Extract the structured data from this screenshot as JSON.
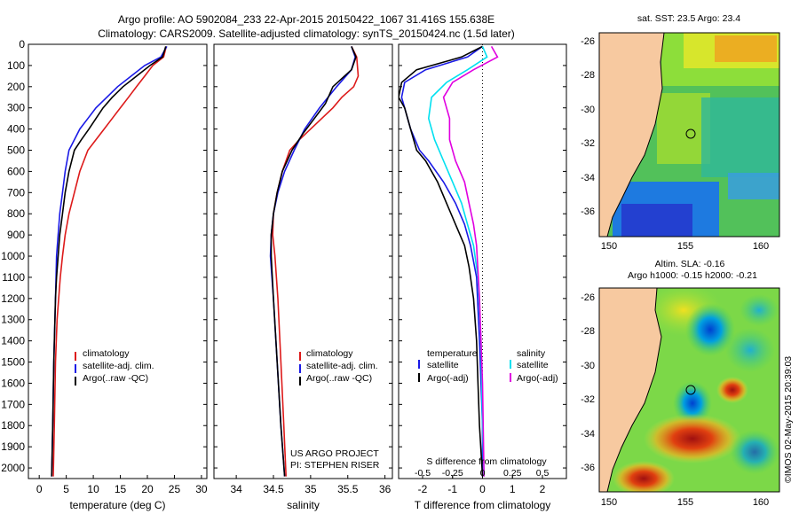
{
  "title_line1": "Argo profile: AO 5902084_233 22-Apr-2015 20150422_1067 31.416S 155.638E",
  "title_line2": "Climatology: CARS2009. Satellite-adjusted climatology: synTS_20150424.nc (1.5d later)",
  "colors": {
    "climatology": "#dd1a1a",
    "satellite": "#1a1ae6",
    "argo": "#000000",
    "sat_salinity": "#00e0f0",
    "argo_salinity": "#e000e0",
    "land": "#f7c9a0"
  },
  "chart_data": [
    {
      "type": "line",
      "xlabel": "temperature (deg C)",
      "xlim": [
        -2,
        31
      ],
      "xticks": [
        0,
        5,
        10,
        15,
        20,
        25,
        30
      ],
      "ylim": [
        2050,
        0
      ],
      "yticks": [
        0,
        100,
        200,
        300,
        400,
        500,
        600,
        700,
        800,
        900,
        1000,
        1100,
        1200,
        1300,
        1400,
        1500,
        1600,
        1700,
        1800,
        1900,
        2000
      ],
      "legend": [
        "climatology",
        "satellite-adj. clim.",
        "Argo(..raw -QC)"
      ],
      "series": [
        {
          "name": "climatology",
          "color": "#dd1a1a",
          "x": [
            23.5,
            23.0,
            21.0,
            19.5,
            18.0,
            16.5,
            15.0,
            13.5,
            12.0,
            10.5,
            9.0,
            7.5,
            6.5,
            5.5,
            4.8,
            4.3,
            3.9,
            3.6,
            3.3,
            3.0,
            2.8,
            2.6
          ],
          "depth": [
            10,
            60,
            100,
            150,
            200,
            250,
            300,
            350,
            400,
            450,
            500,
            600,
            700,
            800,
            900,
            1000,
            1100,
            1200,
            1300,
            1500,
            1800,
            2040
          ]
        },
        {
          "name": "satellite-adj. clim.",
          "color": "#1a1ae6",
          "x": [
            23.6,
            22.5,
            19.5,
            17.0,
            14.5,
            12.5,
            10.5,
            9.0,
            7.5,
            6.5,
            5.5,
            4.8,
            4.3,
            3.8,
            3.5,
            3.2,
            3.0,
            2.7,
            2.5,
            2.3
          ],
          "depth": [
            10,
            60,
            100,
            150,
            200,
            250,
            300,
            350,
            400,
            450,
            500,
            600,
            700,
            800,
            900,
            1000,
            1200,
            1500,
            1800,
            2040
          ]
        },
        {
          "name": "Argo(..raw -QC)",
          "color": "#000000",
          "x": [
            23.4,
            22.8,
            20.5,
            18.0,
            15.5,
            13.5,
            11.8,
            10.5,
            9.2,
            7.8,
            6.5,
            5.5,
            4.8,
            4.3,
            3.8,
            3.5,
            3.2,
            3.0,
            2.7,
            2.5,
            2.3
          ],
          "depth": [
            10,
            60,
            100,
            150,
            200,
            250,
            300,
            350,
            400,
            450,
            500,
            600,
            700,
            800,
            900,
            1000,
            1100,
            1200,
            1500,
            1800,
            2040
          ]
        }
      ]
    },
    {
      "type": "line",
      "xlabel": "salinity",
      "xlim": [
        33.7,
        36.1
      ],
      "xticks": [
        "34",
        "34.5",
        "35",
        "35.5",
        "36"
      ],
      "ylim": [
        2050,
        0
      ],
      "legend": [
        "climatology",
        "satellite-adj. clim.",
        "Argo(..raw -QC)"
      ],
      "annotation": [
        "US ARGO PROJECT",
        "PI: STEPHEN RISER"
      ],
      "series": [
        {
          "name": "climatology",
          "color": "#dd1a1a",
          "x": [
            35.55,
            35.62,
            35.64,
            35.58,
            35.42,
            35.3,
            35.15,
            35.0,
            34.85,
            34.72,
            34.62,
            34.55,
            34.5,
            34.49,
            34.52,
            34.56,
            34.6,
            34.64,
            34.67
          ],
          "depth": [
            10,
            60,
            150,
            200,
            250,
            300,
            350,
            400,
            450,
            500,
            600,
            700,
            800,
            900,
            1000,
            1200,
            1500,
            1800,
            2040
          ]
        },
        {
          "name": "satellite-adj. clim.",
          "color": "#1a1ae6",
          "x": [
            35.55,
            35.6,
            35.55,
            35.35,
            35.12,
            34.92,
            34.78,
            34.65,
            34.56,
            34.5,
            34.47,
            34.46,
            34.5,
            34.55,
            34.6,
            34.65
          ],
          "depth": [
            10,
            60,
            120,
            200,
            300,
            400,
            500,
            600,
            700,
            800,
            900,
            1000,
            1200,
            1500,
            1800,
            2040
          ]
        },
        {
          "name": "Argo(..raw -QC)",
          "color": "#000000",
          "x": [
            35.55,
            35.61,
            35.55,
            35.3,
            35.2,
            35.05,
            34.9,
            34.75,
            34.62,
            34.55,
            34.5,
            34.47,
            34.47,
            34.5,
            34.55,
            34.6,
            34.65
          ],
          "depth": [
            10,
            60,
            120,
            200,
            280,
            350,
            420,
            500,
            600,
            700,
            800,
            900,
            1000,
            1200,
            1500,
            1800,
            2040
          ]
        }
      ]
    },
    {
      "type": "line",
      "xlabel": "T difference from climatology",
      "top_label": "S difference from climatology",
      "xlim": [
        -2.8,
        2.8
      ],
      "xticks_T": [
        "-2",
        "-1",
        "0",
        "1",
        "2"
      ],
      "xticks_S": [
        "-0.5",
        "-0.25",
        "0",
        "0.25",
        "0.5"
      ],
      "ylim": [
        2050,
        0
      ],
      "legend_T_title": "temperature",
      "legend_S_title": "salinity",
      "legend": [
        "satellite",
        "Argo(-adj)",
        "satellite",
        "Argo(-adj)"
      ],
      "series": [
        {
          "name": "T satellite",
          "color": "#1a1ae6",
          "x": [
            0,
            -0.5,
            -1.9,
            -2.6,
            -2.7,
            -2.6,
            -2.4,
            -2.1,
            -1.8,
            -1.3,
            -0.9,
            -0.6,
            -0.4,
            -0.2,
            -0.1,
            0,
            0
          ],
          "depth": [
            10,
            60,
            120,
            180,
            250,
            300,
            400,
            500,
            550,
            650,
            750,
            850,
            950,
            1100,
            1400,
            1800,
            2040
          ]
        },
        {
          "name": "T Argo(-adj)",
          "color": "#000000",
          "x": [
            0,
            -0.7,
            -2.2,
            -2.7,
            -2.8,
            -2.6,
            -2.4,
            -2.2,
            -1.9,
            -1.5,
            -1.2,
            -0.9,
            -0.6,
            -0.45,
            -0.3,
            -0.2,
            -0.15,
            -0.1,
            0
          ],
          "depth": [
            10,
            60,
            120,
            180,
            250,
            300,
            400,
            500,
            550,
            650,
            750,
            850,
            950,
            1050,
            1200,
            1400,
            1600,
            1800,
            2040
          ]
        },
        {
          "name": "S satellite",
          "color": "#00e0f0",
          "x": [
            0,
            0.15,
            -0.5,
            -1.2,
            -1.7,
            -1.8,
            -1.6,
            -1.3,
            -1.0,
            -0.7,
            -0.5,
            -0.3,
            -0.15,
            -0.05,
            0,
            0.05
          ],
          "depth": [
            10,
            60,
            120,
            180,
            250,
            350,
            450,
            550,
            650,
            750,
            850,
            950,
            1100,
            1400,
            1800,
            2040
          ]
        },
        {
          "name": "S Argo(-adj)",
          "color": "#e000e0",
          "x": [
            0.3,
            0.5,
            -0.3,
            -1.0,
            -1.3,
            -1.1,
            -1.1,
            -0.9,
            -0.6,
            -0.45,
            -0.3,
            -0.2,
            -0.1,
            0,
            0.05
          ],
          "depth": [
            10,
            60,
            120,
            180,
            250,
            350,
            450,
            550,
            650,
            750,
            850,
            950,
            1200,
            1600,
            2040
          ]
        }
      ]
    }
  ],
  "map_top": {
    "title": "sat. SST: 23.5  Argo: 23.4",
    "lat_ticks": [
      "-26",
      "-28",
      "-30",
      "-32",
      "-34",
      "-36"
    ],
    "lon_ticks": [
      "150",
      "155",
      "160"
    ]
  },
  "map_bottom": {
    "title1": "Altim. SLA: -0.16",
    "title2": "Argo h1000: -0.15  h2000: -0.21",
    "lat_ticks": [
      "-26",
      "-28",
      "-30",
      "-32",
      "-34",
      "-36"
    ],
    "lon_ticks": [
      "150",
      "155",
      "160"
    ]
  },
  "footer": "©IMOS 02-May-2015 20:39:03"
}
